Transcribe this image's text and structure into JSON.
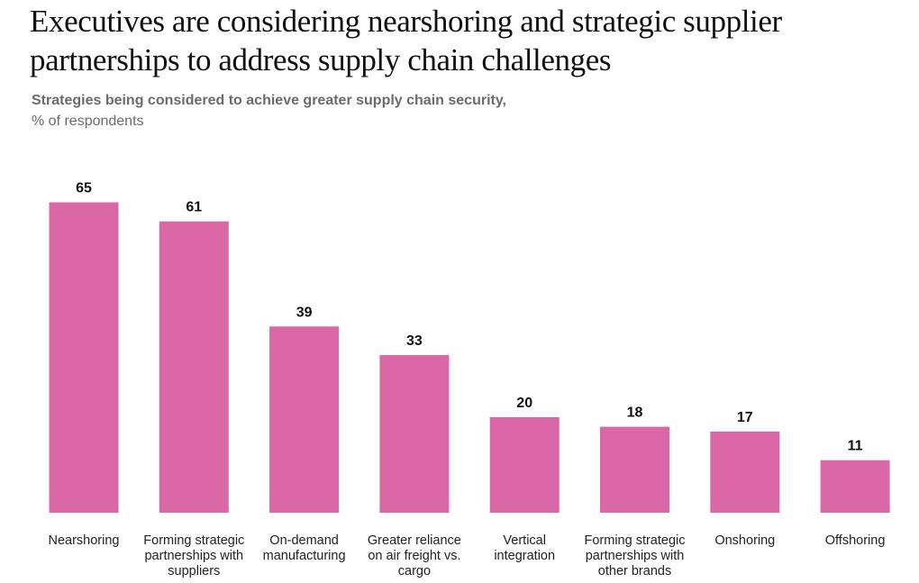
{
  "header": {
    "title_line1": "Executives are considering nearshoring and strategic supplier",
    "title_line2": "partnerships to address supply chain challenges",
    "subtitle_line1": "Strategies being considered to achieve greater supply chain security,",
    "subtitle_line2": "% of respondents"
  },
  "chart_data": {
    "type": "bar",
    "title": "Executives are considering nearshoring and strategic supplier partnerships to address supply chain challenges",
    "subtitle": "Strategies being considered to achieve greater supply chain security, % of respondents",
    "categories": [
      "Nearshoring",
      "Forming strategic partnerships with suppliers",
      "On-demand manufacturing",
      "Greater reliance on air freight vs. cargo",
      "Vertical integration",
      "Forming strategic partnerships with other brands",
      "Onshoring",
      "Offshoring"
    ],
    "category_lines": [
      [
        "Nearshoring"
      ],
      [
        "Forming strategic",
        "partnerships with",
        "suppliers"
      ],
      [
        "On-demand",
        "manufacturing"
      ],
      [
        "Greater reliance",
        "on air freight vs.",
        "cargo"
      ],
      [
        "Vertical",
        "integration"
      ],
      [
        "Forming strategic",
        "partnerships with",
        "other brands"
      ],
      [
        "Onshoring"
      ],
      [
        "Offshoring"
      ]
    ],
    "values": [
      65,
      61,
      39,
      33,
      20,
      18,
      17,
      11
    ],
    "data_labels": true,
    "ylim": [
      0,
      70
    ],
    "grid": false,
    "legend": "none",
    "bar_color": "#da68a6"
  }
}
